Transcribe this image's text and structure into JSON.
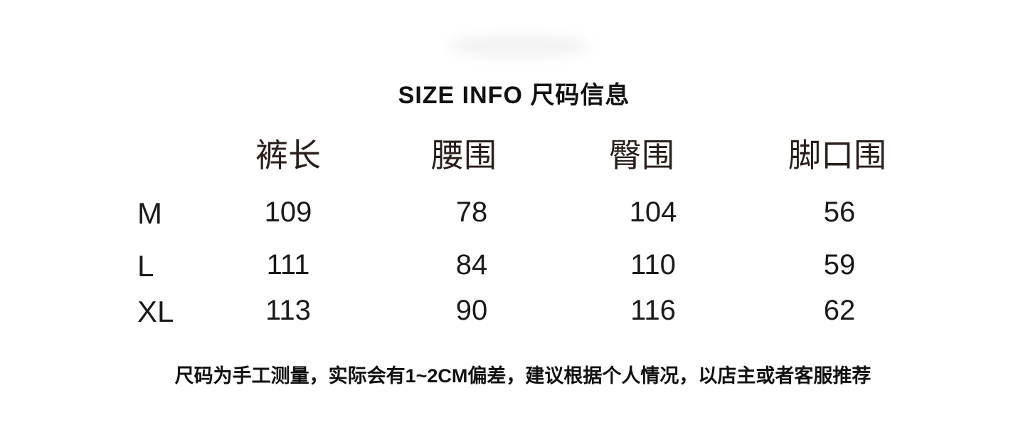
{
  "title": "SIZE INFO 尺码信息",
  "headers": [
    "裤长",
    "腰围",
    "臀围",
    "脚口围"
  ],
  "rows": [
    {
      "size": "M",
      "values": [
        "109",
        "78",
        "104",
        "56"
      ]
    },
    {
      "size": "L",
      "values": [
        "111",
        "84",
        "110",
        "59"
      ]
    },
    {
      "size": "XL",
      "values": [
        "113",
        "90",
        "116",
        "62"
      ]
    }
  ],
  "note": "尺码为手工测量，实际会有1~2CM偏差，建议根据个人情况，以店主或者客服推荐"
}
